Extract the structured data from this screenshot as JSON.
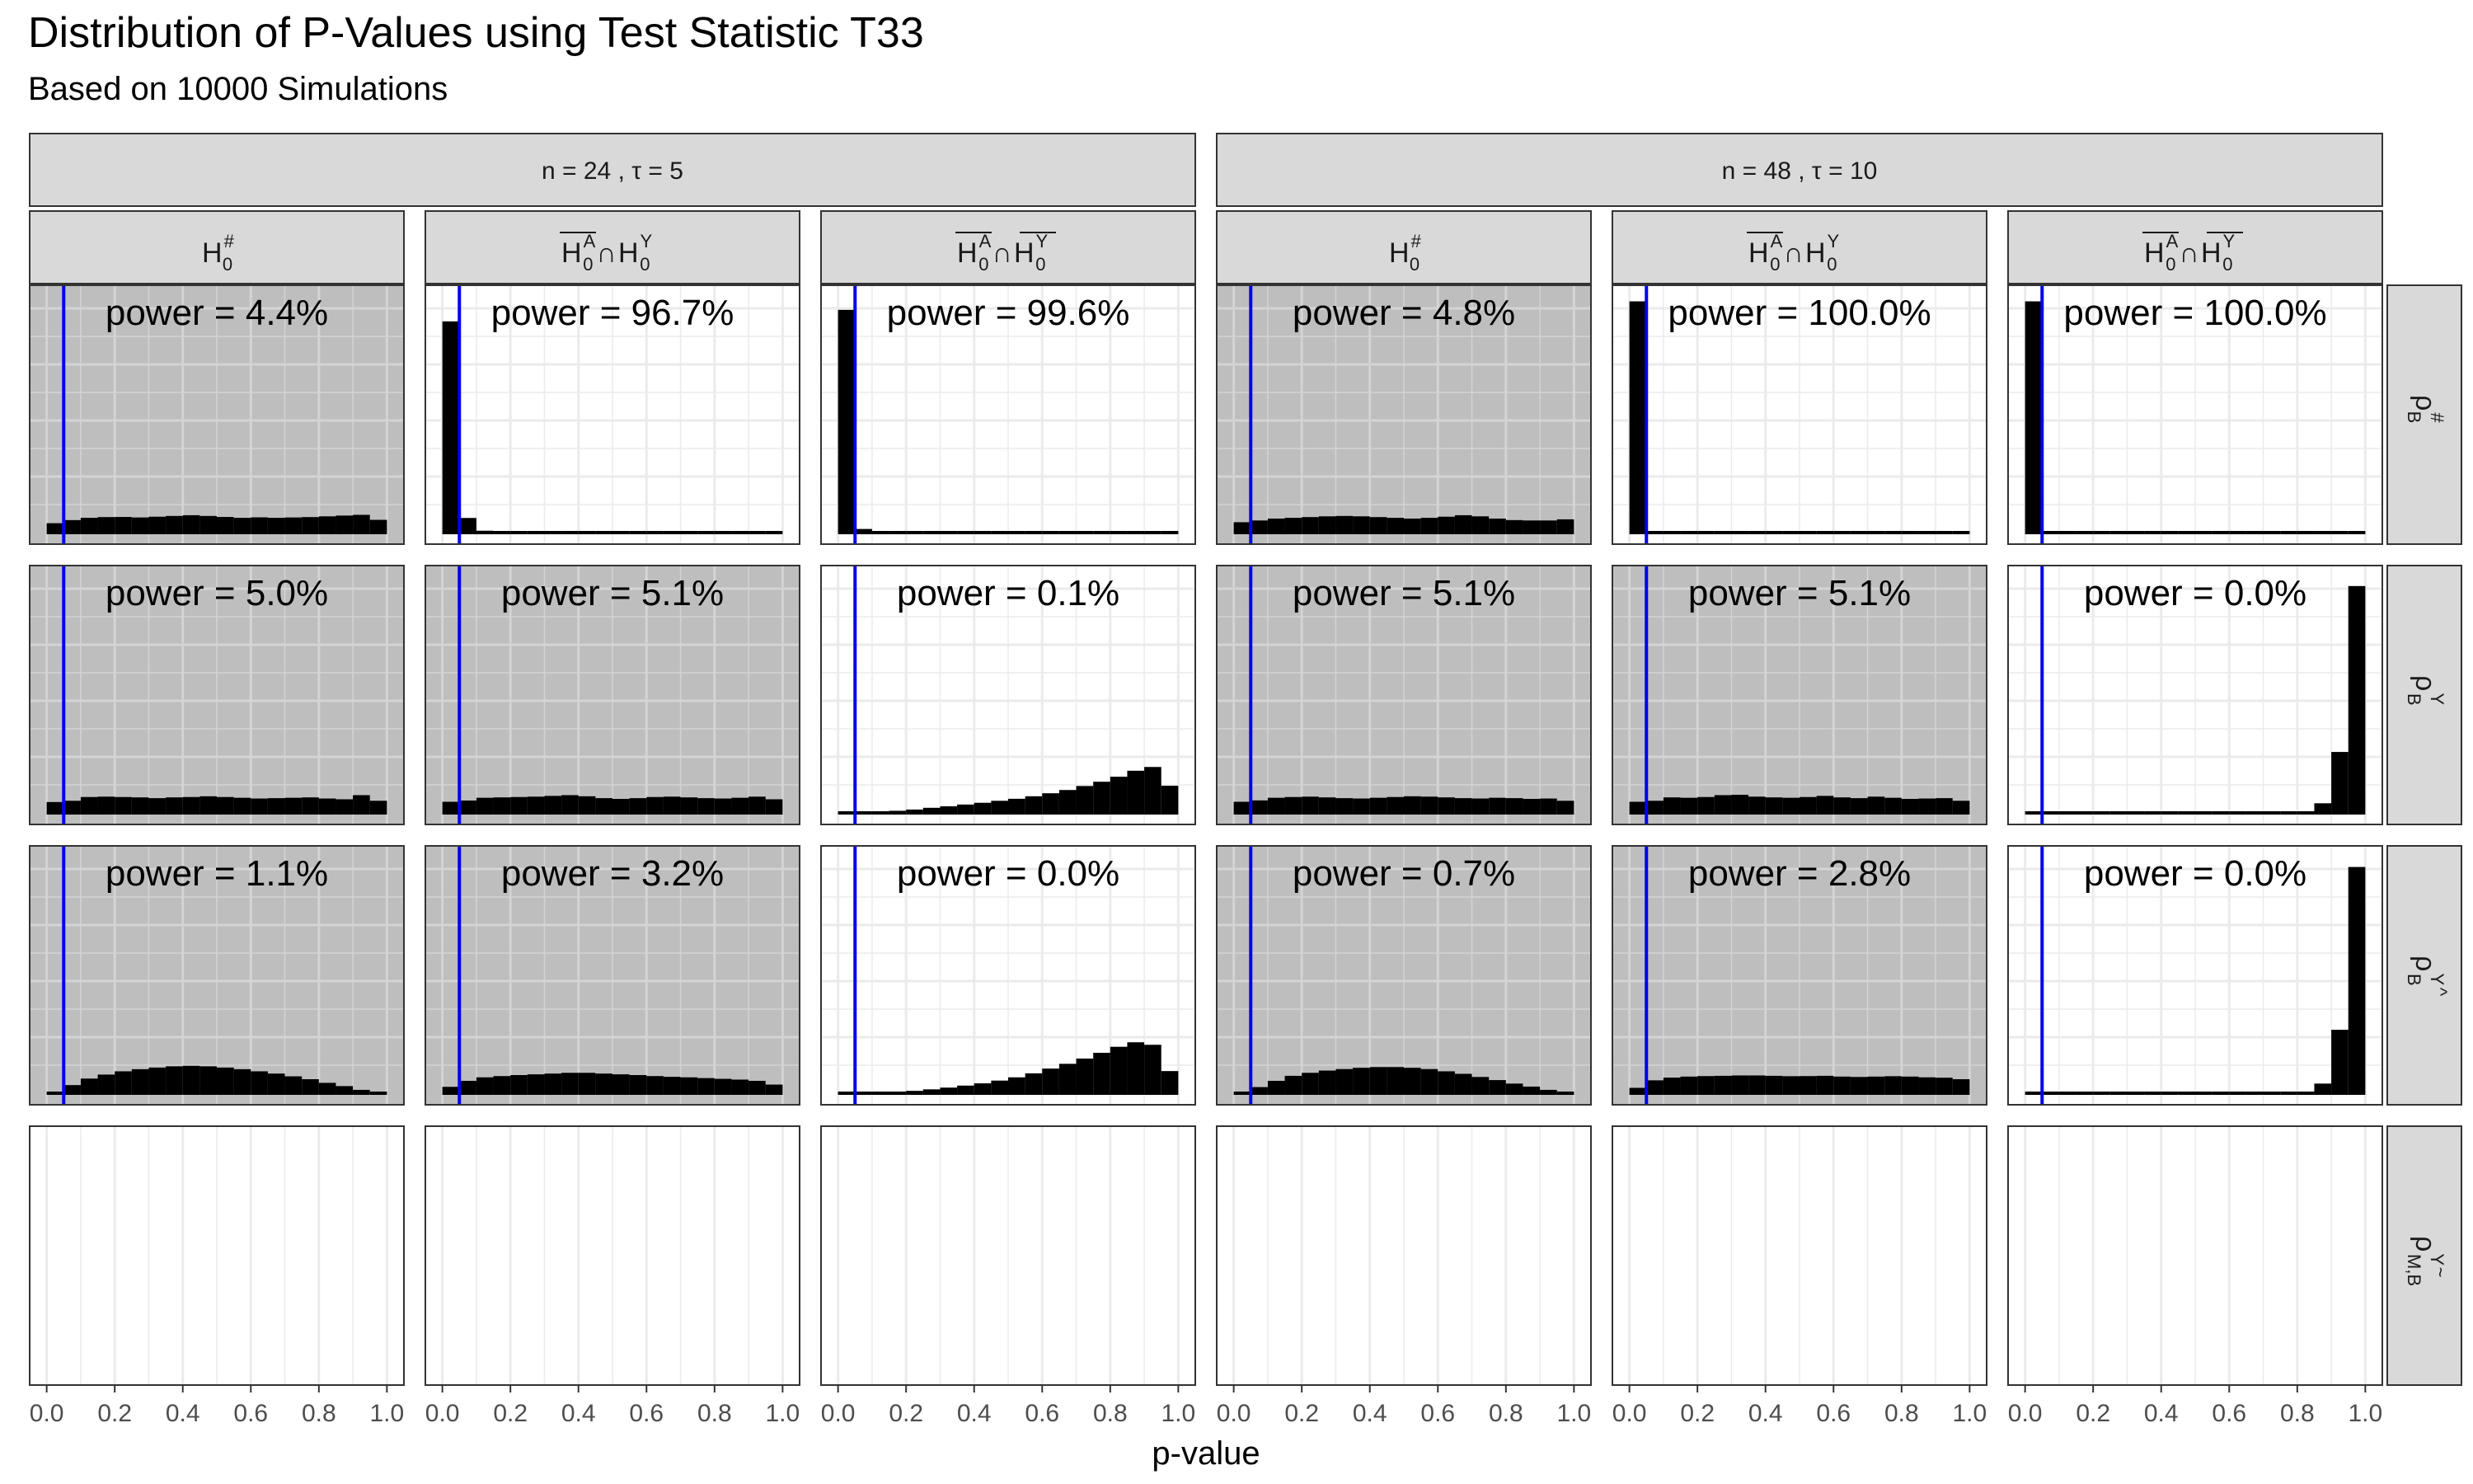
{
  "title": "Distribution of P-Values using Test Statistic T33",
  "subtitle": "Based on 10000 Simulations",
  "chart_data": {
    "type": "bar",
    "chart_kind": "faceted histogram",
    "xlabel": "p-value",
    "xlim": [
      0,
      1
    ],
    "x_ticks": [
      "0.0",
      "0.2",
      "0.4",
      "0.6",
      "0.8",
      "1.0"
    ],
    "significance_line": 0.05,
    "bin_width": 0.05,
    "colors": {
      "bars": "#000000",
      "vline": "#0000ee",
      "null_panel_bg": "#bebebe",
      "alt_panel_bg": "#ffffff",
      "strip_bg": "#d9d9d9",
      "grid": "#ebebeb"
    },
    "top_strips": [
      "n = 24 , τ = 5",
      "n = 48 , τ = 10"
    ],
    "column_strips": [
      {
        "base": "H",
        "sup": "#",
        "sub": "0",
        "kind": "single"
      },
      {
        "kind": "combo",
        "left_bar": true,
        "right_bar": false
      },
      {
        "kind": "combo",
        "left_bar": true,
        "right_bar": true
      },
      {
        "base": "H",
        "sup": "#",
        "sub": "0",
        "kind": "single"
      },
      {
        "kind": "combo",
        "left_bar": true,
        "right_bar": false
      },
      {
        "kind": "combo",
        "left_bar": true,
        "right_bar": true
      }
    ],
    "combo_parts": {
      "base": "H",
      "sup_left": "A",
      "sup_right": "Y",
      "sub": "0",
      "op": "∩"
    },
    "row_strips": [
      {
        "base": "ρ",
        "sub": "B",
        "sup": "#",
        "accent": ""
      },
      {
        "base": "ρ",
        "sub": "B",
        "sup": "Y",
        "accent": ""
      },
      {
        "base": "ρ",
        "sub": "B",
        "sup": "Y",
        "accent": "^"
      },
      {
        "base": "ρ",
        "sub": "M,B",
        "sup": "Y",
        "accent": "~"
      }
    ],
    "ymax": 1870,
    "panels": [
      [
        {
          "null": true,
          "power": "power = 4.4%",
          "values": [
            88,
            113,
            131,
            137,
            138,
            134,
            140,
            146,
            152,
            146,
            138,
            131,
            135,
            131,
            134,
            137,
            143,
            149,
            155,
            115
          ]
        },
        {
          "null": false,
          "power": "power = 96.7%",
          "values": [
            1700,
            130,
            28,
            16,
            12,
            10,
            8,
            7,
            6,
            5,
            5,
            5,
            4,
            4,
            4,
            4,
            4,
            4,
            4,
            4
          ]
        },
        {
          "null": false,
          "power": "power = 99.6%",
          "values": [
            1792,
            42,
            12,
            8,
            6,
            5,
            4,
            4,
            3,
            3,
            3,
            3,
            3,
            3,
            3,
            3,
            3,
            3,
            3,
            3
          ]
        },
        {
          "null": true,
          "power": "power = 4.8%",
          "values": [
            96,
            110,
            125,
            131,
            137,
            143,
            146,
            143,
            137,
            131,
            125,
            131,
            140,
            152,
            143,
            125,
            113,
            110,
            110,
            119
          ]
        },
        {
          "null": false,
          "power": "power = 100.0%",
          "values": [
            1860,
            8,
            4,
            3,
            2,
            2,
            2,
            2,
            2,
            2,
            2,
            2,
            2,
            2,
            2,
            2,
            2,
            2,
            2,
            2
          ]
        },
        {
          "null": false,
          "power": "power = 100.0%",
          "values": [
            1860,
            8,
            4,
            3,
            2,
            2,
            2,
            2,
            2,
            2,
            2,
            2,
            2,
            2,
            2,
            2,
            2,
            2,
            2,
            2
          ]
        }
      ],
      [
        {
          "null": true,
          "power": "power = 5.0%",
          "values": [
            100,
            110,
            140,
            143,
            140,
            137,
            131,
            137,
            140,
            146,
            140,
            134,
            128,
            131,
            134,
            137,
            128,
            122,
            155,
            110
          ]
        },
        {
          "null": true,
          "power": "power = 5.1%",
          "values": [
            102,
            112,
            134,
            137,
            140,
            143,
            149,
            155,
            146,
            131,
            125,
            131,
            140,
            143,
            137,
            131,
            128,
            134,
            143,
            122
          ]
        },
        {
          "null": false,
          "power": "power = 0.1%",
          "values": [
            2,
            10,
            20,
            30,
            40,
            54,
            66,
            80,
            94,
            110,
            126,
            146,
            170,
            196,
            228,
            262,
            302,
            350,
            380,
            230
          ]
        },
        {
          "null": true,
          "power": "power = 5.1%",
          "values": [
            102,
            113,
            134,
            140,
            143,
            137,
            131,
            128,
            134,
            140,
            146,
            143,
            137,
            131,
            128,
            134,
            131,
            125,
            128,
            110
          ]
        },
        {
          "null": true,
          "power": "power = 5.1%",
          "values": [
            102,
            110,
            137,
            134,
            140,
            155,
            158,
            143,
            137,
            134,
            140,
            149,
            137,
            131,
            143,
            134,
            125,
            128,
            131,
            110
          ]
        },
        {
          "null": false,
          "power": "power = 0.0%",
          "values": [
            0,
            0,
            0,
            0,
            0,
            0,
            0,
            0,
            1,
            1,
            1,
            2,
            2,
            3,
            5,
            8,
            18,
            90,
            500,
            1825
          ]
        }
      ],
      [
        {
          "null": true,
          "power": "power = 1.1%",
          "values": [
            22,
            78,
            130,
            162,
            188,
            205,
            218,
            228,
            232,
            228,
            218,
            205,
            188,
            170,
            148,
            125,
            96,
            70,
            40,
            14
          ]
        },
        {
          "null": true,
          "power": "power = 3.2%",
          "values": [
            64,
            112,
            140,
            150,
            158,
            164,
            170,
            176,
            176,
            170,
            164,
            158,
            150,
            144,
            140,
            134,
            128,
            122,
            112,
            82
          ]
        },
        {
          "null": false,
          "power": "power = 0.0%",
          "values": [
            0,
            6,
            14,
            22,
            32,
            44,
            58,
            74,
            92,
            114,
            140,
            172,
            210,
            248,
            290,
            336,
            384,
            420,
            400,
            190
          ]
        },
        {
          "null": true,
          "power": "power = 0.7%",
          "values": [
            14,
            62,
            112,
            152,
            176,
            194,
            206,
            216,
            222,
            222,
            216,
            206,
            188,
            168,
            143,
            118,
            90,
            66,
            40,
            14
          ]
        },
        {
          "null": true,
          "power": "power = 2.8%",
          "values": [
            56,
            116,
            138,
            146,
            150,
            152,
            155,
            155,
            152,
            149,
            150,
            152,
            146,
            143,
            146,
            149,
            146,
            140,
            137,
            125
          ]
        },
        {
          "null": false,
          "power": "power = 0.0%",
          "values": [
            0,
            0,
            0,
            0,
            0,
            0,
            0,
            0,
            0,
            0,
            0,
            1,
            1,
            2,
            3,
            6,
            14,
            90,
            520,
            1820
          ]
        }
      ],
      [
        {
          "empty": true
        },
        {
          "empty": true
        },
        {
          "empty": true
        },
        {
          "empty": true
        },
        {
          "empty": true
        },
        {
          "empty": true
        }
      ]
    ]
  }
}
